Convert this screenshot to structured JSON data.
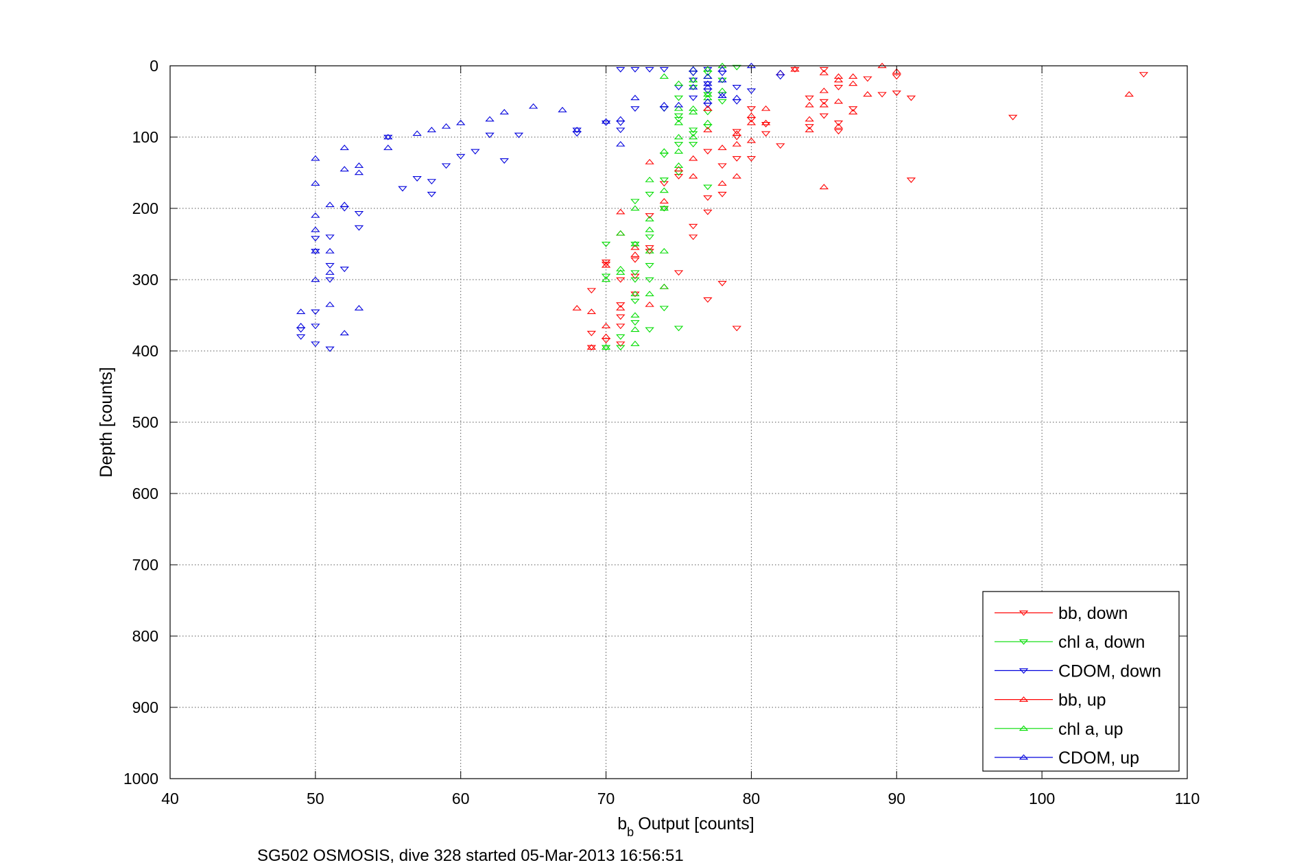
{
  "chart_data": {
    "type": "scatter",
    "title": "",
    "caption": "SG502 OSMOSIS, dive 328 started 05-Mar-2013 16:56:51",
    "xlabel": "Output [counts]",
    "xlabel_prefix": "b",
    "xlabel_subscript": "b",
    "ylabel": "Depth [counts]",
    "xlim": [
      40,
      110
    ],
    "ylim": [
      0,
      1000
    ],
    "y_reversed": true,
    "grid": true,
    "legend_position": "bottom-right",
    "xticks": [
      "40",
      "50",
      "60",
      "70",
      "80",
      "90",
      "100",
      "110"
    ],
    "yticks": [
      "0",
      "100",
      "200",
      "300",
      "400",
      "500",
      "600",
      "700",
      "800",
      "900",
      "1000"
    ],
    "series": [
      {
        "name": "bb, down",
        "color": "#ff0000",
        "marker": "triangle-down",
        "x": [
          107,
          98,
          91,
          91,
          90,
          90,
          89,
          88,
          87,
          86,
          86,
          86,
          85,
          85,
          85,
          84,
          84,
          83,
          82,
          81,
          81,
          80,
          80,
          80,
          79,
          79,
          79,
          78,
          78,
          77,
          77,
          77,
          76,
          76,
          75,
          74,
          74,
          73,
          73,
          72,
          72,
          71,
          71,
          71,
          70,
          70,
          69,
          69,
          79,
          78,
          77,
          75,
          73,
          72,
          71,
          71,
          70,
          69
        ],
        "y": [
          12,
          72,
          160,
          45,
          38,
          15,
          40,
          18,
          60,
          30,
          80,
          92,
          5,
          50,
          70,
          45,
          85,
          5,
          112,
          95,
          82,
          130,
          60,
          75,
          130,
          100,
          92,
          180,
          140,
          120,
          185,
          205,
          240,
          225,
          155,
          200,
          165,
          210,
          255,
          295,
          272,
          300,
          335,
          365,
          275,
          385,
          395,
          315,
          368,
          305,
          328,
          290,
          260,
          320,
          352,
          390,
          278,
          375
        ]
      },
      {
        "name": "chl a, down",
        "color": "#00dd00",
        "marker": "triangle-down",
        "x": [
          79,
          78,
          78,
          77,
          77,
          77,
          77,
          76,
          76,
          76,
          75,
          75,
          75,
          75,
          74,
          74,
          74,
          74,
          73,
          73,
          73,
          73,
          72,
          72,
          72,
          72,
          71,
          71,
          70,
          70,
          70,
          75,
          76,
          77,
          74,
          73,
          72,
          72,
          76,
          75
        ],
        "y": [
          2,
          20,
          50,
          10,
          40,
          65,
          85,
          30,
          90,
          110,
          45,
          70,
          110,
          150,
          60,
          125,
          160,
          200,
          180,
          240,
          280,
          300,
          190,
          250,
          300,
          330,
          380,
          395,
          250,
          295,
          395,
          368,
          10,
          170,
          340,
          370,
          360,
          290,
          95,
          75
        ]
      },
      {
        "name": "CDOM, down",
        "color": "#0000dd",
        "marker": "triangle-down",
        "x": [
          82,
          79,
          79,
          78,
          78,
          77,
          77,
          77,
          76,
          76,
          75,
          74,
          74,
          73,
          72,
          71,
          71,
          70,
          68,
          68,
          64,
          63,
          62,
          61,
          60,
          59,
          58,
          58,
          57,
          56,
          55,
          53,
          53,
          52,
          52,
          51,
          51,
          51,
          50,
          50,
          50,
          50,
          49,
          49,
          50,
          51,
          72,
          71,
          77,
          76,
          80
        ],
        "y": [
          15,
          50,
          30,
          40,
          10,
          5,
          55,
          25,
          10,
          45,
          30,
          60,
          5,
          5,
          60,
          80,
          90,
          80,
          95,
          90,
          97,
          133,
          97,
          120,
          127,
          140,
          180,
          162,
          158,
          172,
          100,
          227,
          207,
          285,
          200,
          280,
          240,
          300,
          242,
          260,
          345,
          365,
          370,
          380,
          390,
          397,
          5,
          5,
          35,
          20,
          35
        ]
      },
      {
        "name": "bb, up",
        "color": "#ff0000",
        "marker": "triangle-up",
        "x": [
          106,
          89,
          88,
          87,
          87,
          86,
          86,
          85,
          85,
          85,
          84,
          84,
          84,
          83,
          82,
          81,
          80,
          80,
          80,
          79,
          79,
          78,
          78,
          77,
          77,
          76,
          76,
          75,
          74,
          74,
          73,
          73,
          72,
          72,
          71,
          71,
          71,
          70,
          70,
          70,
          69,
          69,
          68,
          81,
          85,
          86,
          87,
          90,
          86,
          79,
          77
        ],
        "y": [
          40,
          0,
          40,
          25,
          15,
          15,
          50,
          10,
          35,
          55,
          75,
          55,
          90,
          5,
          10,
          60,
          80,
          105,
          70,
          95,
          110,
          115,
          165,
          60,
          90,
          155,
          130,
          145,
          190,
          310,
          135,
          335,
          255,
          265,
          205,
          235,
          340,
          365,
          280,
          380,
          395,
          345,
          340,
          80,
          170,
          20,
          65,
          8,
          85,
          155,
          60
        ]
      },
      {
        "name": "chl a, up",
        "color": "#00dd00",
        "marker": "triangle-up",
        "x": [
          78,
          78,
          77,
          77,
          77,
          76,
          76,
          76,
          75,
          75,
          75,
          75,
          74,
          74,
          74,
          74,
          74,
          73,
          73,
          73,
          73,
          72,
          72,
          72,
          72,
          72,
          71,
          71,
          70,
          70,
          77,
          76,
          75,
          74,
          73,
          72,
          71,
          75,
          76,
          77
        ],
        "y": [
          0,
          35,
          5,
          40,
          80,
          20,
          60,
          100,
          25,
          60,
          100,
          140,
          15,
          120,
          200,
          260,
          310,
          160,
          215,
          260,
          320,
          200,
          250,
          320,
          370,
          390,
          235,
          290,
          300,
          395,
          45,
          5,
          80,
          175,
          230,
          350,
          285,
          120,
          65,
          15
        ]
      },
      {
        "name": "CDOM, up",
        "color": "#0000dd",
        "marker": "triangle-up",
        "x": [
          82,
          80,
          78,
          78,
          77,
          77,
          77,
          76,
          75,
          74,
          72,
          71,
          71,
          70,
          68,
          67,
          65,
          63,
          62,
          60,
          59,
          58,
          57,
          55,
          55,
          53,
          53,
          52,
          52,
          52,
          51,
          51,
          51,
          50,
          50,
          50,
          50,
          50,
          49,
          49,
          53,
          52,
          51,
          50,
          77,
          76,
          78,
          79
        ],
        "y": [
          10,
          0,
          20,
          42,
          15,
          50,
          30,
          30,
          55,
          55,
          45,
          75,
          110,
          78,
          90,
          62,
          57,
          65,
          75,
          80,
          85,
          90,
          95,
          100,
          115,
          150,
          140,
          115,
          145,
          195,
          195,
          260,
          335,
          130,
          165,
          210,
          230,
          300,
          345,
          365,
          340,
          375,
          290,
          260,
          25,
          5,
          5,
          45
        ]
      }
    ]
  }
}
